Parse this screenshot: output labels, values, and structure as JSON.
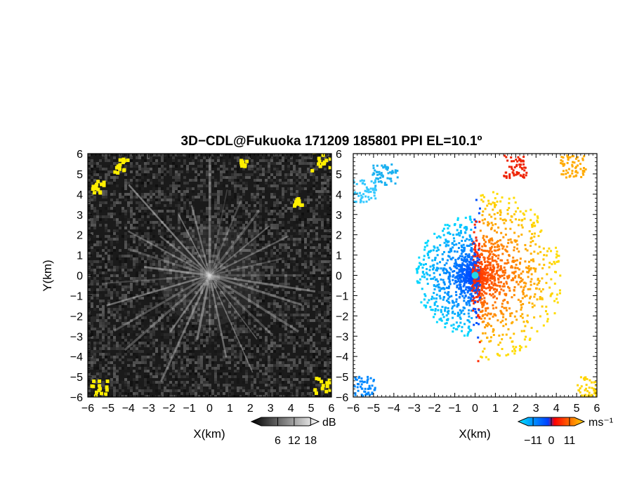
{
  "title": "3D−CDL@Fukuoka 171209 185801 PPI EL=10.1º",
  "chart_data": [
    {
      "type": "heatmap",
      "panel": "reflectivity",
      "xlabel": "X(km)",
      "ylabel": "Y(km)",
      "xlim": [
        -6,
        6
      ],
      "ylim": [
        -6,
        6
      ],
      "xticks": [
        "−6",
        "−5",
        "−4",
        "−3",
        "−2",
        "−1",
        "0",
        "1",
        "2",
        "3",
        "4",
        "5",
        "6"
      ],
      "yticks": [
        "−6",
        "−5",
        "−4",
        "−3",
        "−2",
        "−1",
        "0",
        "1",
        "2",
        "3",
        "4",
        "5",
        "6"
      ],
      "colorbar": {
        "unit": "dB",
        "ticks": [
          "6",
          "12",
          "18"
        ],
        "tick_values": [
          6,
          12,
          18
        ],
        "range": [
          0,
          21
        ],
        "colors": [
          "#000000",
          "#ffffff"
        ]
      },
      "highlight_color": "#ffef00"
    },
    {
      "type": "heatmap",
      "panel": "doppler_velocity",
      "xlabel": "X(km)",
      "ylabel": "",
      "xlim": [
        -6,
        6
      ],
      "ylim": [
        -6,
        6
      ],
      "xticks": [
        "−6",
        "−5",
        "−4",
        "−3",
        "−2",
        "−1",
        "0",
        "1",
        "2",
        "3",
        "4",
        "5",
        "6"
      ],
      "yticks": [
        "−6",
        "−5",
        "−4",
        "−3",
        "−2",
        "−1",
        "0",
        "1",
        "2",
        "3",
        "4",
        "5",
        "6"
      ],
      "colorbar": {
        "unit": "ms⁻¹",
        "ticks": [
          "−11",
          "0",
          "11"
        ],
        "tick_values": [
          -11,
          0,
          11
        ],
        "range": [
          -14,
          14
        ],
        "colors": [
          "#00e5ff",
          "#0040ff",
          "#ff0000",
          "#ffd400"
        ]
      }
    }
  ]
}
